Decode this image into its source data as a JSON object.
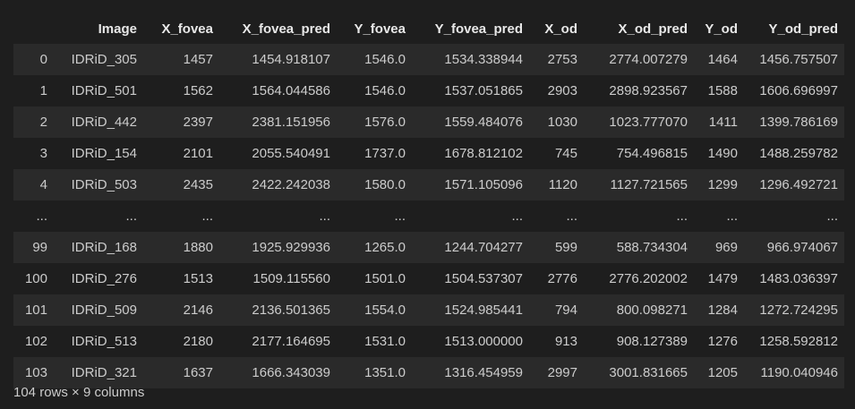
{
  "table": {
    "columns": [
      "",
      "Image",
      "X_fovea",
      "X_fovea_pred",
      "Y_fovea",
      "Y_fovea_pred",
      "X_od",
      "X_od_pred",
      "Y_od",
      "Y_od_pred"
    ],
    "rows": [
      [
        "0",
        "IDRiD_305",
        "1457",
        "1454.918107",
        "1546.0",
        "1534.338944",
        "2753",
        "2774.007279",
        "1464",
        "1456.757507"
      ],
      [
        "1",
        "IDRiD_501",
        "1562",
        "1564.044586",
        "1546.0",
        "1537.051865",
        "2903",
        "2898.923567",
        "1588",
        "1606.696997"
      ],
      [
        "2",
        "IDRiD_442",
        "2397",
        "2381.151956",
        "1576.0",
        "1559.484076",
        "1030",
        "1023.777070",
        "1411",
        "1399.786169"
      ],
      [
        "3",
        "IDRiD_154",
        "2101",
        "2055.540491",
        "1737.0",
        "1678.812102",
        "745",
        "754.496815",
        "1490",
        "1488.259782"
      ],
      [
        "4",
        "IDRiD_503",
        "2435",
        "2422.242038",
        "1580.0",
        "1571.105096",
        "1120",
        "1127.721565",
        "1299",
        "1296.492721"
      ],
      [
        "...",
        "...",
        "...",
        "...",
        "...",
        "...",
        "...",
        "...",
        "...",
        "..."
      ],
      [
        "99",
        "IDRiD_168",
        "1880",
        "1925.929936",
        "1265.0",
        "1244.704277",
        "599",
        "588.734304",
        "969",
        "966.974067"
      ],
      [
        "100",
        "IDRiD_276",
        "1513",
        "1509.115560",
        "1501.0",
        "1504.537307",
        "2776",
        "2776.202002",
        "1479",
        "1483.036397"
      ],
      [
        "101",
        "IDRiD_509",
        "2146",
        "2136.501365",
        "1554.0",
        "1524.985441",
        "794",
        "800.098271",
        "1284",
        "1272.724295"
      ],
      [
        "102",
        "IDRiD_513",
        "2180",
        "2177.164695",
        "1531.0",
        "1513.000000",
        "913",
        "908.127389",
        "1276",
        "1258.592812"
      ],
      [
        "103",
        "IDRiD_321",
        "1637",
        "1666.343039",
        "1351.0",
        "1316.454959",
        "2997",
        "3001.831665",
        "1205",
        "1190.040946"
      ]
    ]
  },
  "footer": {
    "shape": "104 rows × 9 columns"
  }
}
